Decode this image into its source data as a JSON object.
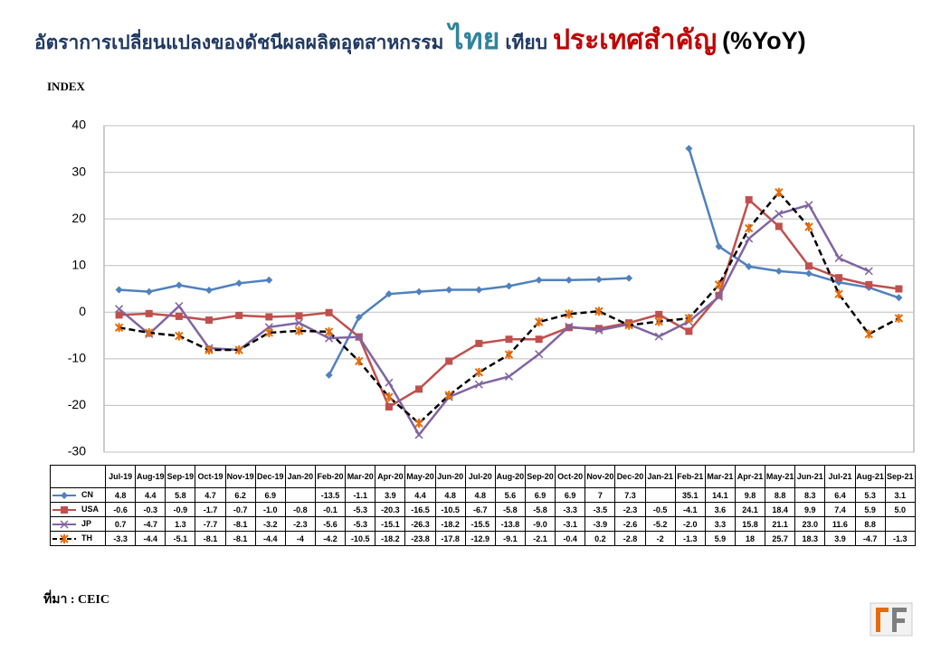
{
  "chart_data": {
    "type": "line",
    "title": [
      "อัตราการเปลี่ยนแปลงของดัชนีผลผลิตอุตสาหกรรม",
      "ไทย",
      "เทียบ",
      "ประเทศสำคัญ",
      "(%YoY)"
    ],
    "y_label": "INDEX",
    "source": "ที่มา : CEIC",
    "categories": [
      "Jul-19",
      "Aug-19",
      "Sep-19",
      "Oct-19",
      "Nov-19",
      "Dec-19",
      "Jan-20",
      "Feb-20",
      "Mar-20",
      "Apr-20",
      "May-20",
      "Jun-20",
      "Jul-20",
      "Aug-20",
      "Sep-20",
      "Oct-20",
      "Nov-20",
      "Dec-20",
      "Jan-21",
      "Feb-21",
      "Mar-21",
      "Apr-21",
      "May-21",
      "Jun-21",
      "Jul-21",
      "Aug-21",
      "Sep-21"
    ],
    "ylim": [
      -30,
      40
    ],
    "yticks": [
      -30,
      -20,
      -10,
      0,
      10,
      20,
      30,
      40
    ],
    "grid": true,
    "series": [
      {
        "name": "CN",
        "color": "#4f81bd",
        "marker": "diamond",
        "values": [
          4.8,
          4.4,
          5.8,
          4.7,
          6.2,
          6.9,
          null,
          -13.5,
          -1.1,
          3.9,
          4.4,
          4.8,
          4.8,
          5.6,
          6.9,
          6.9,
          7,
          7.3,
          null,
          35.1,
          14.1,
          9.8,
          8.8,
          8.3,
          6.4,
          5.3,
          3.1
        ],
        "value_labels": [
          "4.8",
          "4.4",
          "5.8",
          "4.7",
          "6.2",
          "6.9",
          null,
          "-13.5",
          "-1.1",
          "3.9",
          "4.4",
          "4.8",
          "4.8",
          "5.6",
          "6.9",
          "6.9",
          "7",
          "7.3",
          null,
          "35.1",
          "14.1",
          "9.8",
          "8.8",
          "8.3",
          "6.4",
          "5.3",
          "3.1"
        ]
      },
      {
        "name": "USA",
        "color": "#c0504d",
        "marker": "square",
        "values": [
          -0.6,
          -0.3,
          -0.9,
          -1.7,
          -0.7,
          -1.0,
          -0.8,
          -0.1,
          -5.3,
          -20.3,
          -16.5,
          -10.5,
          -6.7,
          -5.8,
          -5.8,
          -3.3,
          -3.5,
          -2.3,
          -0.5,
          -4.1,
          3.6,
          24.1,
          18.4,
          9.9,
          7.4,
          5.9,
          5.0
        ],
        "value_labels": [
          "-0.6",
          "-0.3",
          "-0.9",
          "-1.7",
          "-0.7",
          "-1.0",
          "-0.8",
          "-0.1",
          "-5.3",
          "-20.3",
          "-16.5",
          "-10.5",
          "-6.7",
          "-5.8",
          "-5.8",
          "-3.3",
          "-3.5",
          "-2.3",
          "-0.5",
          "-4.1",
          "3.6",
          "24.1",
          "18.4",
          "9.9",
          "7.4",
          "5.9",
          "5.0"
        ]
      },
      {
        "name": "JP",
        "color": "#8064a2",
        "marker": "x",
        "values": [
          0.7,
          -4.7,
          1.3,
          -7.7,
          -8.1,
          -3.2,
          -2.3,
          -5.6,
          -5.3,
          -15.1,
          -26.3,
          -18.2,
          -15.5,
          -13.8,
          -9.0,
          -3.1,
          -3.9,
          -2.6,
          -5.2,
          -2.0,
          3.3,
          15.8,
          21.1,
          23.0,
          11.6,
          8.8,
          null
        ],
        "value_labels": [
          "0.7",
          "-4.7",
          "1.3",
          "-7.7",
          "-8.1",
          "-3.2",
          "-2.3",
          "-5.6",
          "-5.3",
          "-15.1",
          "-26.3",
          "-18.2",
          "-15.5",
          "-13.8",
          "-9.0",
          "-3.1",
          "-3.9",
          "-2.6",
          "-5.2",
          "-2.0",
          "3.3",
          "15.8",
          "21.1",
          "23.0",
          "11.6",
          "8.8",
          null
        ]
      },
      {
        "name": "TH",
        "color": "#000000",
        "marker": "star",
        "dashed": true,
        "values": [
          -3.3,
          -4.4,
          -5.1,
          -8.1,
          -8.1,
          -4.4,
          -4,
          -4.2,
          -10.5,
          -18.2,
          -23.8,
          -17.8,
          -12.9,
          -9.1,
          -2.1,
          -0.4,
          0.2,
          -2.8,
          -2,
          -1.3,
          5.9,
          18,
          25.7,
          18.3,
          3.9,
          -4.7,
          -1.3
        ],
        "value_labels": [
          "-3.3",
          "-4.4",
          "-5.1",
          "-8.1",
          "-8.1",
          "-4.4",
          "-4",
          "-4.2",
          "-10.5",
          "-18.2",
          "-23.8",
          "-17.8",
          "-12.9",
          "-9.1",
          "-2.1",
          "-0.4",
          "0.2",
          "-2.8",
          "-2",
          "-1.3",
          "5.9",
          "18",
          "25.7",
          "18.3",
          "3.9",
          "-4.7",
          "-1.3"
        ]
      }
    ]
  }
}
